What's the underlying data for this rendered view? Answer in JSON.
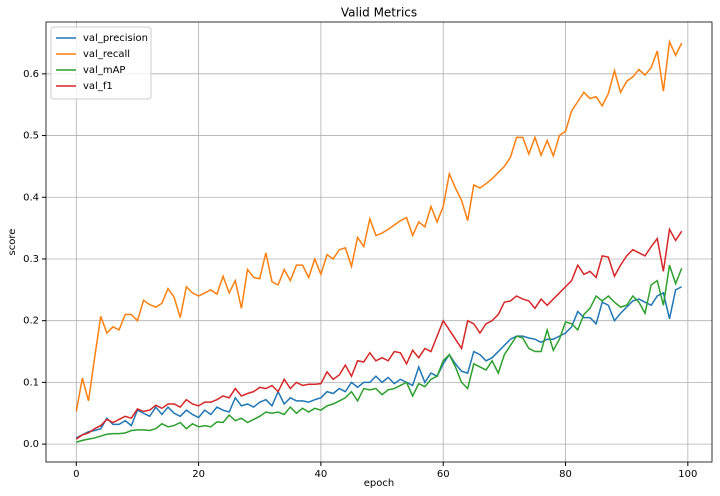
{
  "chart_data": {
    "type": "line",
    "title": "Valid Metrics",
    "x_label": "epoch",
    "y_label": "score",
    "x": [
      0,
      1,
      2,
      3,
      4,
      5,
      6,
      7,
      8,
      9,
      10,
      11,
      12,
      13,
      14,
      15,
      16,
      17,
      18,
      19,
      20,
      21,
      22,
      23,
      24,
      25,
      26,
      27,
      28,
      29,
      30,
      31,
      32,
      33,
      34,
      35,
      36,
      37,
      38,
      39,
      40,
      41,
      42,
      43,
      44,
      45,
      46,
      47,
      48,
      49,
      50,
      51,
      52,
      53,
      54,
      55,
      56,
      57,
      58,
      59,
      60,
      61,
      62,
      63,
      64,
      65,
      66,
      67,
      68,
      69,
      70,
      71,
      72,
      73,
      74,
      75,
      76,
      77,
      78,
      79,
      80,
      81,
      82,
      83,
      84,
      85,
      86,
      87,
      88,
      89,
      90,
      91,
      92,
      93,
      94,
      95,
      96,
      97,
      98,
      99
    ],
    "series": [
      {
        "name": "val_precision",
        "color": "#1f77b4",
        "values": [
          0.01,
          0.015,
          0.02,
          0.022,
          0.025,
          0.042,
          0.032,
          0.032,
          0.038,
          0.03,
          0.055,
          0.05,
          0.045,
          0.06,
          0.048,
          0.06,
          0.05,
          0.045,
          0.055,
          0.048,
          0.043,
          0.055,
          0.048,
          0.06,
          0.055,
          0.052,
          0.075,
          0.062,
          0.065,
          0.06,
          0.068,
          0.072,
          0.062,
          0.085,
          0.065,
          0.075,
          0.07,
          0.07,
          0.068,
          0.072,
          0.075,
          0.085,
          0.082,
          0.09,
          0.085,
          0.1,
          0.092,
          0.1,
          0.1,
          0.11,
          0.1,
          0.108,
          0.098,
          0.105,
          0.1,
          0.095,
          0.125,
          0.1,
          0.115,
          0.11,
          0.13,
          0.145,
          0.13,
          0.118,
          0.115,
          0.15,
          0.145,
          0.135,
          0.14,
          0.15,
          0.16,
          0.17,
          0.175,
          0.175,
          0.172,
          0.17,
          0.165,
          0.17,
          0.17,
          0.175,
          0.18,
          0.19,
          0.215,
          0.205,
          0.205,
          0.195,
          0.23,
          0.225,
          0.2,
          0.212,
          0.222,
          0.232,
          0.235,
          0.23,
          0.225,
          0.24,
          0.245,
          0.203,
          0.25,
          0.255
        ]
      },
      {
        "name": "val_recall",
        "color": "#ff7f0e",
        "values": [
          0.053,
          0.107,
          0.07,
          0.14,
          0.207,
          0.18,
          0.19,
          0.185,
          0.21,
          0.21,
          0.2,
          0.233,
          0.226,
          0.222,
          0.228,
          0.252,
          0.238,
          0.205,
          0.255,
          0.245,
          0.24,
          0.245,
          0.25,
          0.243,
          0.272,
          0.245,
          0.265,
          0.22,
          0.283,
          0.27,
          0.268,
          0.31,
          0.263,
          0.258,
          0.283,
          0.265,
          0.29,
          0.29,
          0.27,
          0.3,
          0.275,
          0.307,
          0.3,
          0.315,
          0.318,
          0.288,
          0.335,
          0.32,
          0.365,
          0.338,
          0.342,
          0.348,
          0.355,
          0.362,
          0.367,
          0.338,
          0.36,
          0.352,
          0.385,
          0.36,
          0.385,
          0.438,
          0.415,
          0.395,
          0.362,
          0.42,
          0.415,
          0.422,
          0.43,
          0.44,
          0.45,
          0.465,
          0.497,
          0.497,
          0.47,
          0.497,
          0.468,
          0.492,
          0.467,
          0.5,
          0.507,
          0.54,
          0.555,
          0.57,
          0.56,
          0.563,
          0.548,
          0.568,
          0.605,
          0.57,
          0.588,
          0.595,
          0.607,
          0.598,
          0.61,
          0.637,
          0.572,
          0.652,
          0.63,
          0.65
        ]
      },
      {
        "name": "val_mAP",
        "color": "#2ca02c",
        "values": [
          0.003,
          0.006,
          0.008,
          0.01,
          0.013,
          0.016,
          0.017,
          0.017,
          0.018,
          0.022,
          0.023,
          0.023,
          0.022,
          0.025,
          0.033,
          0.028,
          0.03,
          0.035,
          0.025,
          0.033,
          0.028,
          0.03,
          0.028,
          0.036,
          0.035,
          0.047,
          0.038,
          0.042,
          0.035,
          0.04,
          0.045,
          0.052,
          0.05,
          0.052,
          0.048,
          0.06,
          0.05,
          0.058,
          0.052,
          0.058,
          0.055,
          0.062,
          0.065,
          0.07,
          0.075,
          0.085,
          0.07,
          0.09,
          0.088,
          0.09,
          0.08,
          0.088,
          0.09,
          0.095,
          0.1,
          0.078,
          0.098,
          0.093,
          0.105,
          0.11,
          0.135,
          0.145,
          0.125,
          0.1,
          0.09,
          0.13,
          0.125,
          0.12,
          0.135,
          0.115,
          0.145,
          0.16,
          0.175,
          0.172,
          0.155,
          0.15,
          0.15,
          0.185,
          0.152,
          0.17,
          0.198,
          0.195,
          0.185,
          0.21,
          0.22,
          0.24,
          0.232,
          0.24,
          0.23,
          0.222,
          0.225,
          0.24,
          0.23,
          0.212,
          0.258,
          0.265,
          0.225,
          0.29,
          0.26,
          0.285
        ]
      },
      {
        "name": "val_f1",
        "color": "#d62728",
        "values": [
          0.008,
          0.015,
          0.018,
          0.025,
          0.03,
          0.04,
          0.035,
          0.04,
          0.045,
          0.042,
          0.057,
          0.053,
          0.055,
          0.063,
          0.058,
          0.065,
          0.065,
          0.06,
          0.072,
          0.065,
          0.062,
          0.068,
          0.068,
          0.072,
          0.078,
          0.075,
          0.09,
          0.078,
          0.082,
          0.085,
          0.092,
          0.09,
          0.095,
          0.085,
          0.105,
          0.09,
          0.1,
          0.095,
          0.097,
          0.097,
          0.098,
          0.117,
          0.105,
          0.112,
          0.128,
          0.11,
          0.135,
          0.133,
          0.148,
          0.135,
          0.14,
          0.135,
          0.15,
          0.148,
          0.13,
          0.152,
          0.14,
          0.155,
          0.15,
          0.175,
          0.2,
          0.185,
          0.17,
          0.155,
          0.2,
          0.195,
          0.18,
          0.195,
          0.2,
          0.21,
          0.23,
          0.232,
          0.24,
          0.235,
          0.232,
          0.22,
          0.235,
          0.225,
          0.235,
          0.245,
          0.255,
          0.265,
          0.29,
          0.275,
          0.28,
          0.27,
          0.305,
          0.303,
          0.272,
          0.29,
          0.305,
          0.315,
          0.31,
          0.305,
          0.32,
          0.333,
          0.28,
          0.348,
          0.33,
          0.345
        ]
      }
    ],
    "xlim": [
      -4.95,
      103.95
    ],
    "ylim": [
      -0.029,
      0.684
    ],
    "xticks": [
      0,
      20,
      40,
      60,
      80,
      100
    ],
    "yticks": [
      {
        "value": 0,
        "label": "0.0"
      },
      0.1,
      0.2,
      0.3,
      0.4,
      0.5,
      0.6
    ],
    "grid": true,
    "legend": "upper-left"
  }
}
